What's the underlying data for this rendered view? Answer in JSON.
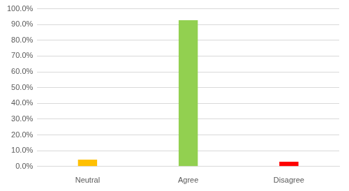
{
  "chart_data": {
    "type": "bar",
    "categories": [
      "Neutral",
      "Agree",
      "Disagree"
    ],
    "values": [
      4.3,
      92.7,
      3.0
    ],
    "colors": [
      "#ffc000",
      "#92d050",
      "#ff0000"
    ],
    "ylim": [
      0,
      100
    ],
    "yticks": [
      {
        "value": 0,
        "label": "0.0%"
      },
      {
        "value": 10,
        "label": "10.0%"
      },
      {
        "value": 20,
        "label": "20.0%"
      },
      {
        "value": 30,
        "label": "30.0%"
      },
      {
        "value": 40,
        "label": "40.0%"
      },
      {
        "value": 50,
        "label": "50.0%"
      },
      {
        "value": 60,
        "label": "60.0%"
      },
      {
        "value": 70,
        "label": "70.0%"
      },
      {
        "value": 80,
        "label": "80.0%"
      },
      {
        "value": 90,
        "label": "90.0%"
      },
      {
        "value": 100,
        "label": "100.0%"
      }
    ],
    "grid": true
  }
}
